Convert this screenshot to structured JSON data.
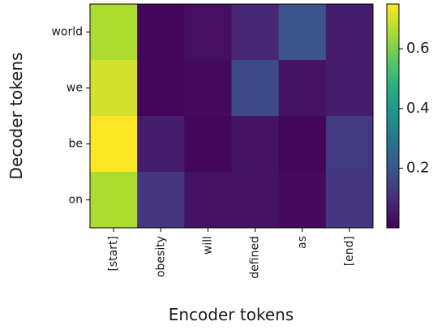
{
  "chart_data": {
    "type": "heatmap",
    "xlabel": "Encoder tokens",
    "ylabel": "Decoder tokens",
    "x_categories": [
      "[start]",
      "obesity",
      "will",
      "defined",
      "as",
      "[end]"
    ],
    "y_categories": [
      "world",
      "we",
      "be",
      "on"
    ],
    "values": [
      [
        0.66,
        0.01,
        0.03,
        0.08,
        0.19,
        0.06
      ],
      [
        0.7,
        0.01,
        0.02,
        0.17,
        0.04,
        0.06
      ],
      [
        0.75,
        0.06,
        0.01,
        0.04,
        0.01,
        0.13
      ],
      [
        0.66,
        0.12,
        0.04,
        0.04,
        0.02,
        0.12
      ]
    ],
    "colorscale": "viridis",
    "vmin": 0.0,
    "vmax": 0.75,
    "colorbar_ticks": [
      "0.2",
      "0.4",
      "0.6"
    ],
    "colorbar_tick_values": [
      0.2,
      0.4,
      0.6
    ]
  }
}
